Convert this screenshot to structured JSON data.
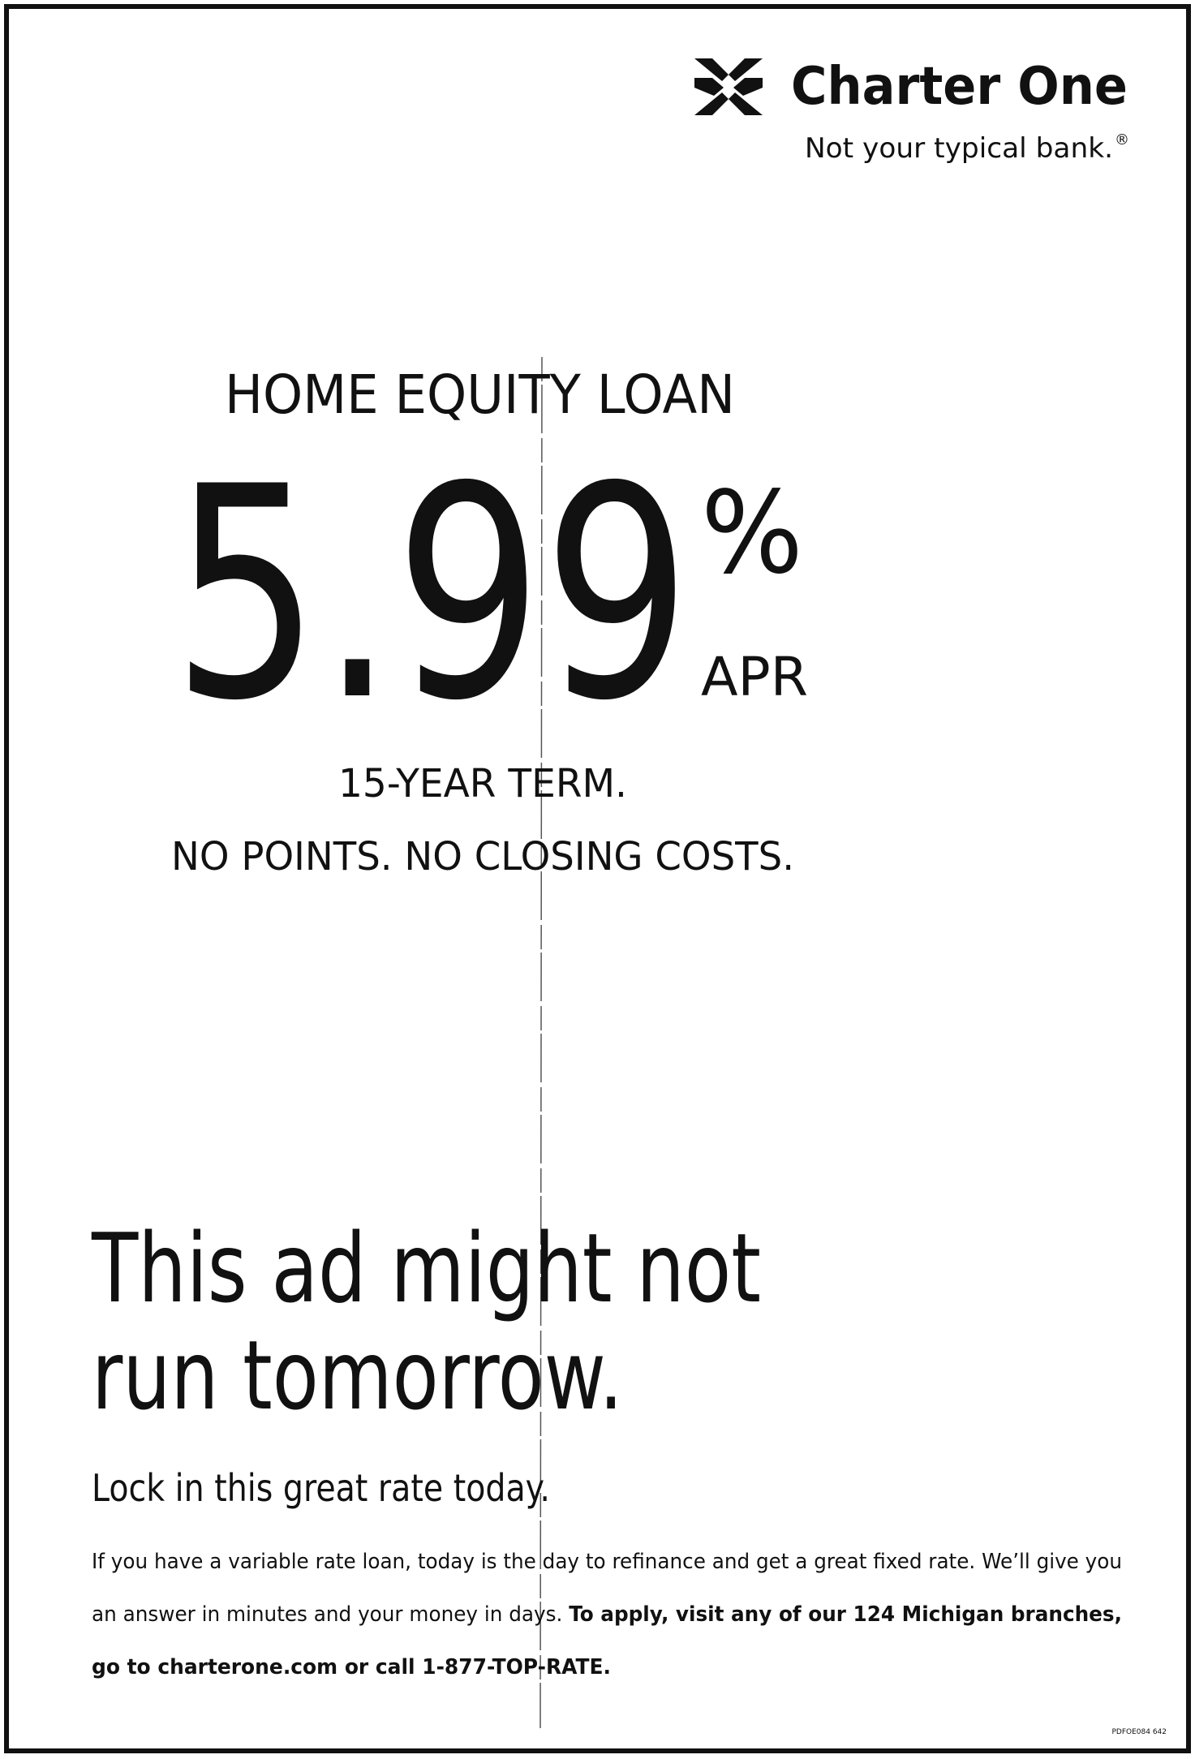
{
  "header": {
    "brand": "Charter One",
    "tagline": "Not your typical bank.",
    "registered": "®"
  },
  "offer": {
    "product": "HOME EQUITY LOAN",
    "rate": "5.99",
    "percent": "%",
    "rate_type": "APR",
    "term": "15-YEAR TERM.",
    "features": "NO POINTS. NO CLOSING COSTS."
  },
  "headline": {
    "lines": [
      "This ad might not",
      "run tomorrow."
    ]
  },
  "subhead": "Lock in this great rate today.",
  "body": {
    "lines": [
      [
        {
          "text": "If you have a variable rate loan, today is the day to refinance and get a great fixed rate. We’ll give you",
          "bold": false
        }
      ],
      [
        {
          "text": "an answer in minutes and your money in days. ",
          "bold": false
        },
        {
          "text": "To apply, visit any of our 124 Michigan branches,",
          "bold": true
        }
      ],
      [
        {
          "text": "go to charterone.com or call 1-877-TOP-RATE.",
          "bold": true
        }
      ]
    ]
  },
  "footer": {
    "code": "PDFOE084 642"
  }
}
